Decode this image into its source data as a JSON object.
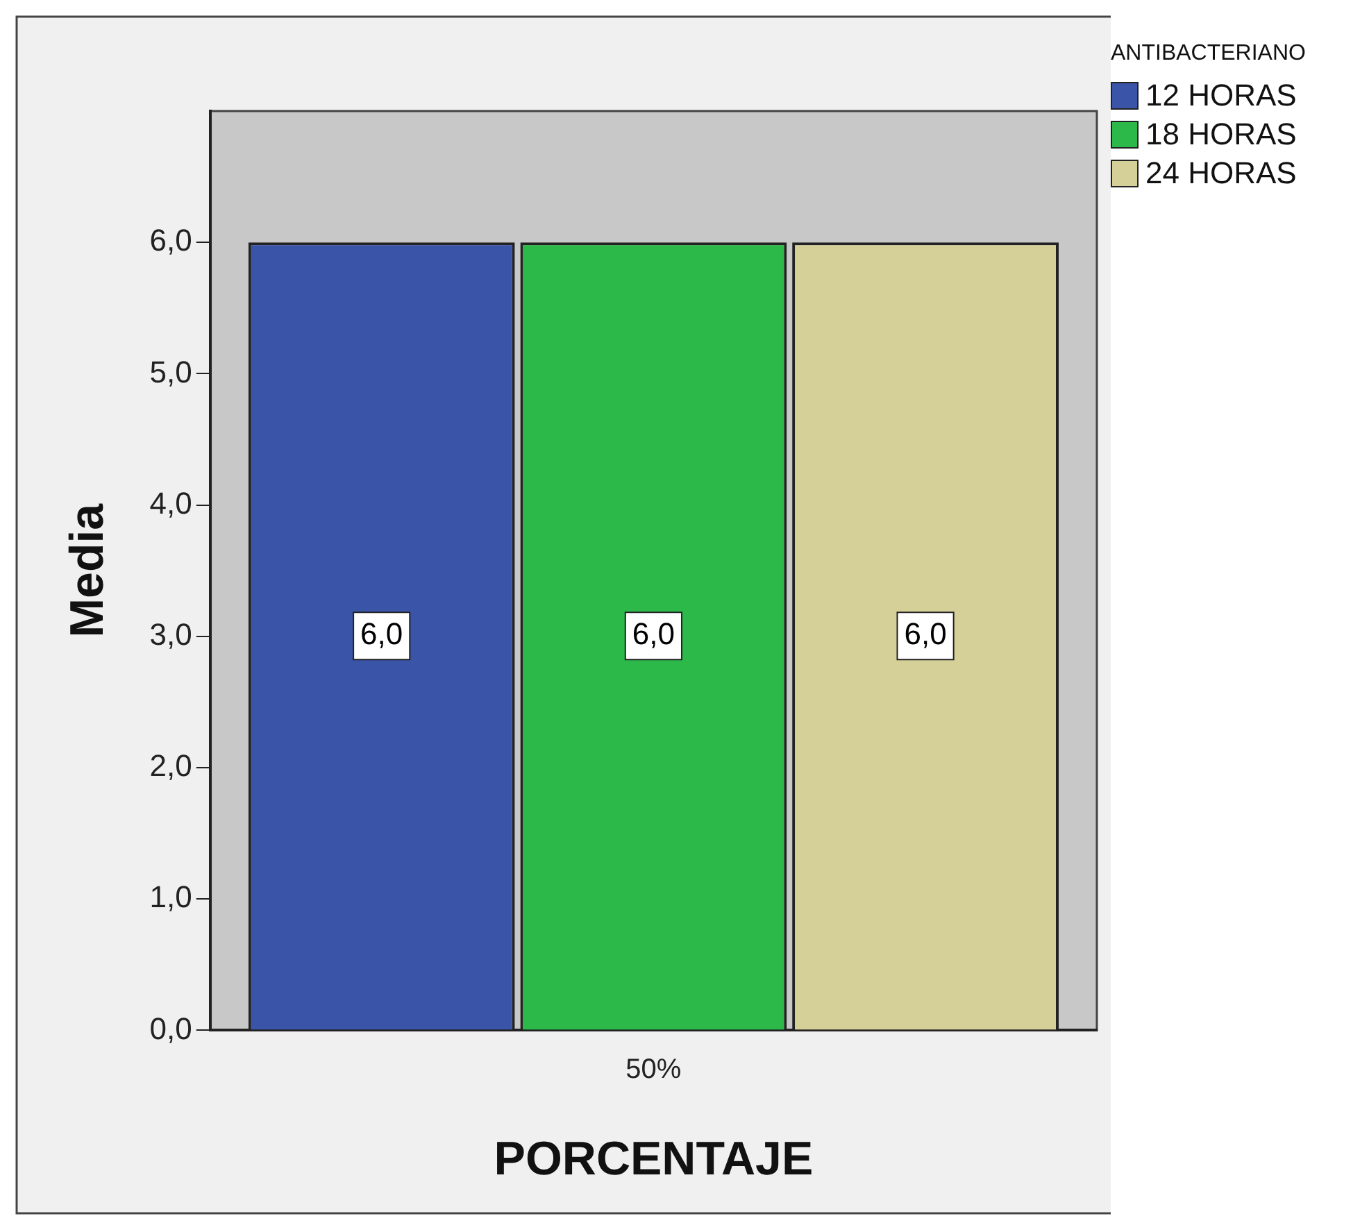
{
  "chart_data": {
    "type": "bar",
    "xlabel": "PORCENTAJE",
    "ylabel": "Media",
    "legend_title": "ANTIBACTERIANO",
    "categories": [
      "50%"
    ],
    "series": [
      {
        "name": "12 HORAS",
        "color": "#3a55a8",
        "values": [
          6.0
        ],
        "value_labels": [
          "6,0"
        ]
      },
      {
        "name": "18 HORAS",
        "color": "#2db84a",
        "values": [
          6.0
        ],
        "value_labels": [
          "6,0"
        ]
      },
      {
        "name": "24 HORAS",
        "color": "#d5cf98",
        "values": [
          6.0
        ],
        "value_labels": [
          "6,0"
        ]
      }
    ],
    "ylim": [
      0,
      7
    ],
    "yticks": [
      {
        "value": 0,
        "label": "0,0"
      },
      {
        "value": 1,
        "label": "1,0"
      },
      {
        "value": 2,
        "label": "2,0"
      },
      {
        "value": 3,
        "label": "3,0"
      },
      {
        "value": 4,
        "label": "4,0"
      },
      {
        "value": 5,
        "label": "5,0"
      },
      {
        "value": 6,
        "label": "6,0"
      }
    ],
    "grid": false,
    "legend": "top right"
  }
}
